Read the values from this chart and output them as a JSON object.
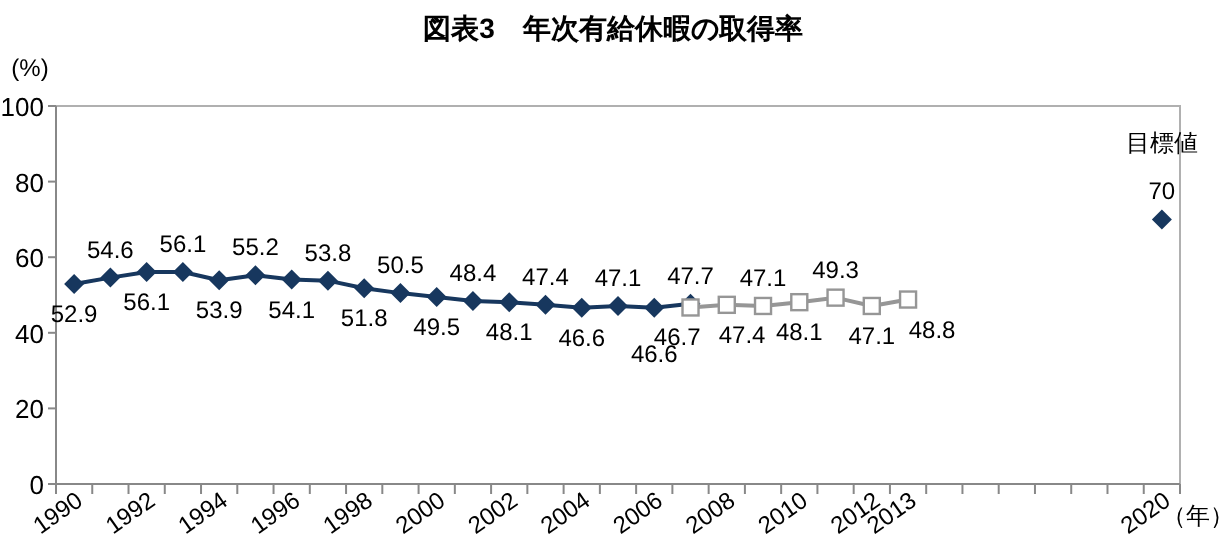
{
  "chart_data": {
    "type": "line",
    "title": "図表3　年次有給休暇の取得率",
    "xlabel": "（年）",
    "ylabel": "(%)",
    "categories": [
      "1990",
      null,
      "1992",
      null,
      "1994",
      null,
      "1996",
      null,
      "1998",
      null,
      "2000",
      null,
      "2002",
      null,
      "2004",
      null,
      "2006",
      null,
      "2008",
      null,
      "2010",
      null,
      "2012",
      "2013",
      null,
      null,
      null,
      null,
      null,
      null,
      "2020"
    ],
    "ylim": [
      0,
      100
    ],
    "yticks": [
      0,
      20,
      40,
      60,
      80,
      100
    ],
    "data_labels": true,
    "series": [
      {
        "color": "#17375e",
        "marker": "diamond",
        "values": [
          52.9,
          54.6,
          56.1,
          56.1,
          53.9,
          55.2,
          54.1,
          53.8,
          51.8,
          50.5,
          49.5,
          48.4,
          48.1,
          47.4,
          46.6,
          47.1,
          46.6,
          47.7,
          null,
          null,
          null,
          null,
          null,
          null,
          null,
          null,
          null,
          null,
          null,
          null,
          null
        ]
      },
      {
        "color": "#969696",
        "marker": "square",
        "values": [
          null,
          null,
          null,
          null,
          null,
          null,
          null,
          null,
          null,
          null,
          null,
          null,
          null,
          null,
          null,
          null,
          null,
          46.7,
          47.4,
          47.1,
          48.1,
          49.3,
          47.1,
          48.8,
          null,
          null,
          null,
          null,
          null,
          null,
          null
        ]
      },
      {
        "type": "scatter",
        "name": "目標値",
        "color": "#17375e",
        "marker": "diamond",
        "values": [
          null,
          null,
          null,
          null,
          null,
          null,
          null,
          null,
          null,
          null,
          null,
          null,
          null,
          null,
          null,
          null,
          null,
          null,
          null,
          null,
          null,
          null,
          null,
          null,
          null,
          null,
          null,
          null,
          null,
          null,
          70
        ]
      }
    ]
  }
}
